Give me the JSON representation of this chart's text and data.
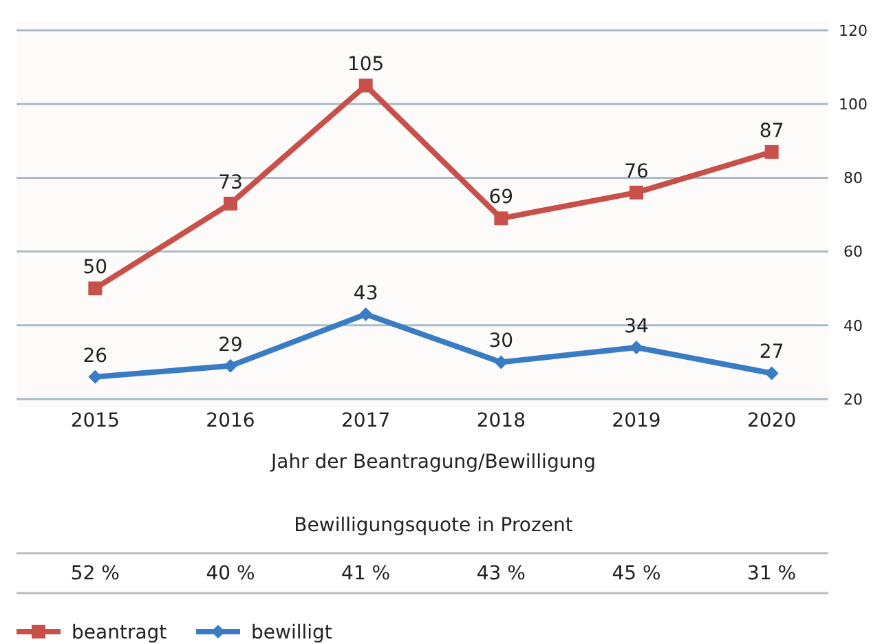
{
  "chart_data": {
    "type": "line",
    "xlabel": "Jahr der Beantragung/Bewilligung",
    "categories": [
      "2015",
      "2016",
      "2017",
      "2018",
      "2019",
      "2020"
    ],
    "series": [
      {
        "name": "beantragt",
        "color": "#c8504a",
        "marker": "square",
        "values": [
          50,
          73,
          105,
          69,
          76,
          87
        ]
      },
      {
        "name": "bewilligt",
        "color": "#3a7cc4",
        "marker": "diamond",
        "values": [
          26,
          29,
          43,
          30,
          34,
          27
        ]
      }
    ],
    "ylim": [
      20,
      120
    ],
    "yticks": [
      20,
      40,
      60,
      80,
      100,
      120
    ],
    "grid": "y",
    "data_labels": true,
    "legend": "bottom left",
    "annotations": [
      "Bewilligungsquote in Prozent",
      "52 %",
      "40 %",
      "41 %",
      "43 %",
      "45 %",
      "31 %"
    ]
  }
}
